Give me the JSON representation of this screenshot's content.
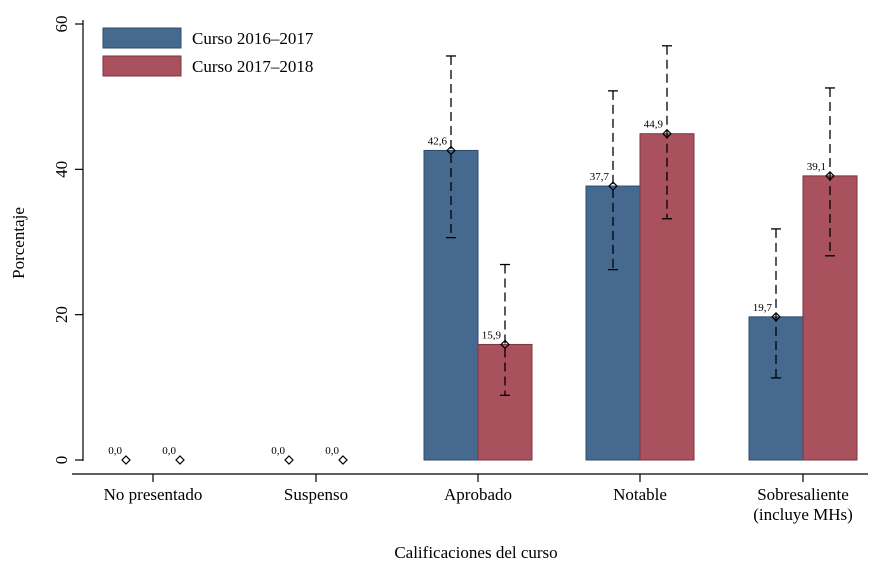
{
  "chart_data": {
    "type": "bar",
    "title": "",
    "xlabel": "Calificaciones del curso",
    "ylabel": "Porcentaje",
    "ylim": [
      0,
      60
    ],
    "yticks": [
      0,
      20,
      40,
      60
    ],
    "grid": false,
    "legend_position": "top-left",
    "categories": [
      [
        "No presentado"
      ],
      [
        "Suspenso"
      ],
      [
        "Aprobado"
      ],
      [
        "Notable"
      ],
      [
        "Sobresaliente",
        "(incluye MHs)"
      ]
    ],
    "series": [
      {
        "name": "Curso 2016–2017",
        "color": "#466a8f",
        "values": [
          0.0,
          0.0,
          42.6,
          37.7,
          19.7
        ],
        "labels": [
          "0,0",
          "0,0",
          "42,6",
          "37,7",
          "19,7"
        ],
        "ci_low": [
          null,
          null,
          30.6,
          26.2,
          11.3
        ],
        "ci_high": [
          null,
          null,
          55.6,
          50.8,
          31.8
        ]
      },
      {
        "name": "Curso 2017–2018",
        "color": "#a9525d",
        "values": [
          0.0,
          0.0,
          15.9,
          44.9,
          39.1
        ],
        "labels": [
          "0,0",
          "0,0",
          "15,9",
          "44,9",
          "39,1"
        ],
        "ci_low": [
          null,
          null,
          8.9,
          33.2,
          28.1
        ],
        "ci_high": [
          null,
          null,
          26.9,
          57.0,
          51.2
        ]
      }
    ]
  }
}
